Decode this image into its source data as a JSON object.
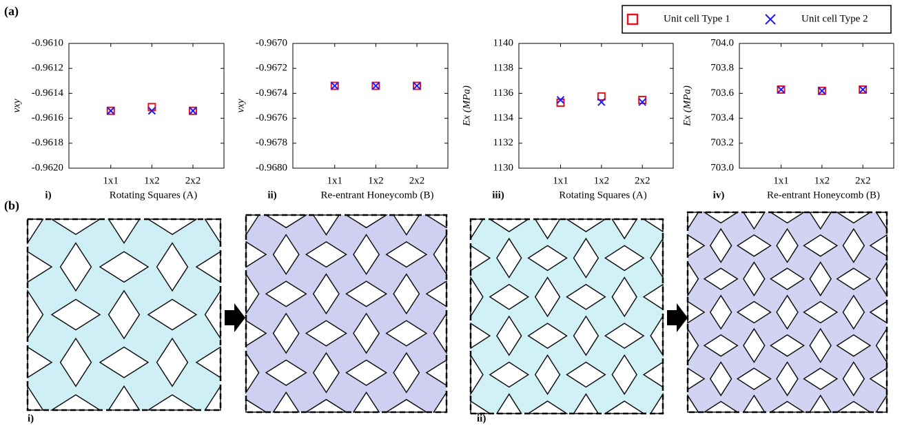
{
  "figure_labels": {
    "part_a": "(a)",
    "part_b": "(b)",
    "b_panels": [
      "i)",
      "ii)"
    ]
  },
  "chart_data": [
    {
      "type": "scatter",
      "panel": "i)",
      "x_label": "Rotating Squares (A)",
      "y_label": "νxy",
      "categories": [
        "1x1",
        "1x2",
        "2x2"
      ],
      "ylim": [
        -0.962,
        -0.961
      ],
      "yticks": [
        {
          "value": -0.962,
          "label": "-0.9620"
        },
        -0.9618,
        -0.9616,
        -0.9614,
        -0.9612,
        {
          "value": -0.961,
          "label": "-0.9610"
        }
      ],
      "legend": "upper right",
      "series": [
        {
          "name": "Unit cell Type 1",
          "color": "#e8141c",
          "marker": "square",
          "values": [
            -0.96154,
            -0.96151,
            -0.96154
          ]
        },
        {
          "name": "Unit cell Type 2",
          "color": "#1a1aff",
          "marker": "x",
          "values": [
            -0.96154,
            -0.96154,
            -0.96154
          ]
        }
      ]
    },
    {
      "type": "scatter",
      "panel": "ii)",
      "x_label": "Re-entrant Honeycomb (B)",
      "y_label": "νxy",
      "categories": [
        "1x1",
        "1x2",
        "2x2"
      ],
      "ylim": [
        -0.968,
        -0.967
      ],
      "yticks": [
        {
          "value": -0.968,
          "label": "-0.9680"
        },
        -0.9678,
        -0.9676,
        -0.9674,
        -0.9672,
        {
          "value": -0.967,
          "label": "-0.9670"
        }
      ],
      "series": [
        {
          "color": "#e8141c",
          "marker": "square",
          "values": [
            -0.96734,
            -0.96734,
            -0.96734
          ]
        },
        {
          "color": "#1a1aff",
          "marker": "x",
          "values": [
            -0.96734,
            -0.96734,
            -0.96734
          ]
        }
      ]
    },
    {
      "type": "scatter",
      "panel": "iii)",
      "x_label": "Rotating Squares (A)",
      "y_label": "Ex (MPa)",
      "categories": [
        "1x1",
        "1x2",
        "2x2"
      ],
      "ylim": [
        1130,
        1140
      ],
      "yticks": [
        1130,
        1132,
        1134,
        1136,
        1138,
        1140
      ],
      "series": [
        {
          "color": "#e8141c",
          "marker": "square",
          "values": [
            1135.25,
            1135.75,
            1135.47
          ]
        },
        {
          "color": "#1a1aff",
          "marker": "x",
          "values": [
            1135.47,
            1135.3,
            1135.3
          ]
        }
      ]
    },
    {
      "type": "scatter",
      "panel": "iv)",
      "x_label": "Re-entrant Honeycomb (B)",
      "y_label": "Ex (MPa)",
      "categories": [
        "1x1",
        "1x2",
        "2x2"
      ],
      "ylim": [
        703.0,
        704.0
      ],
      "yticks": [
        {
          "value": 703.0,
          "label": "703.0"
        },
        703.2,
        703.4,
        703.6,
        703.8,
        {
          "value": 704.0,
          "label": "704.0"
        }
      ],
      "series": [
        {
          "color": "#e8141c",
          "marker": "square",
          "values": [
            703.63,
            703.62,
            703.63
          ]
        },
        {
          "color": "#1a1aff",
          "marker": "x",
          "values": [
            703.63,
            703.62,
            703.63
          ]
        }
      ]
    }
  ]
}
